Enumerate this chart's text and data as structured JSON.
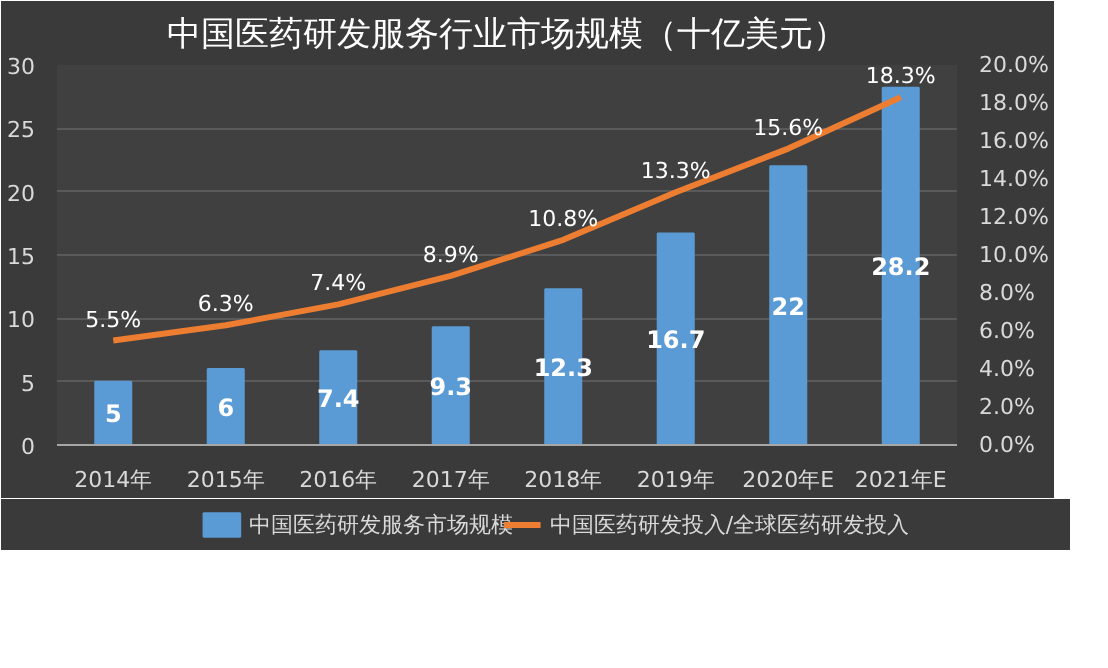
{
  "chart_data": {
    "type": "bar",
    "title": "中国医药研发服务行业市场规模（十亿美元）",
    "categories": [
      "2014年",
      "2015年",
      "2016年",
      "2017年",
      "2018年",
      "2019年",
      "2020年E",
      "2021年E"
    ],
    "series": [
      {
        "name": "中国医药研发服务市场规模",
        "type": "bar",
        "color": "#5b9bd5",
        "values": [
          5,
          6,
          7.4,
          9.3,
          12.3,
          16.7,
          22,
          28.2
        ],
        "value_labels": [
          "5",
          "6",
          "7.4",
          "9.3",
          "12.3",
          "16.7",
          "22",
          "28.2"
        ]
      },
      {
        "name": "中国医药研发投入/全球医药研发投入",
        "type": "line",
        "axis": "y2",
        "color": "#ed7d31",
        "values": [
          5.5,
          6.3,
          7.4,
          8.9,
          10.8,
          13.3,
          15.6,
          18.3
        ],
        "value_labels": [
          "5.5%",
          "6.3%",
          "7.4%",
          "8.9%",
          "10.8%",
          "13.3%",
          "15.6%",
          "18.3%"
        ]
      }
    ],
    "ylim": [
      0,
      30
    ],
    "yticks": [
      0,
      5,
      10,
      15,
      20,
      25,
      30
    ],
    "y2lim": [
      0,
      20
    ],
    "y2ticks": [
      {
        "value": 0,
        "label": "0.0%"
      },
      {
        "value": 2,
        "label": "2.0%"
      },
      {
        "value": 4,
        "label": "4.0%"
      },
      {
        "value": 6,
        "label": "6.0%"
      },
      {
        "value": 8,
        "label": "8.0%"
      },
      {
        "value": 10,
        "label": "10.0%"
      },
      {
        "value": 12,
        "label": "12.0%"
      },
      {
        "value": 14,
        "label": "14.0%"
      },
      {
        "value": 16,
        "label": "16.0%"
      },
      {
        "value": 18,
        "label": "18.0%"
      },
      {
        "value": 20,
        "label": "20.0%"
      }
    ],
    "grid": "y",
    "legend": "bottom",
    "marker": "none",
    "line_style": "solid"
  }
}
